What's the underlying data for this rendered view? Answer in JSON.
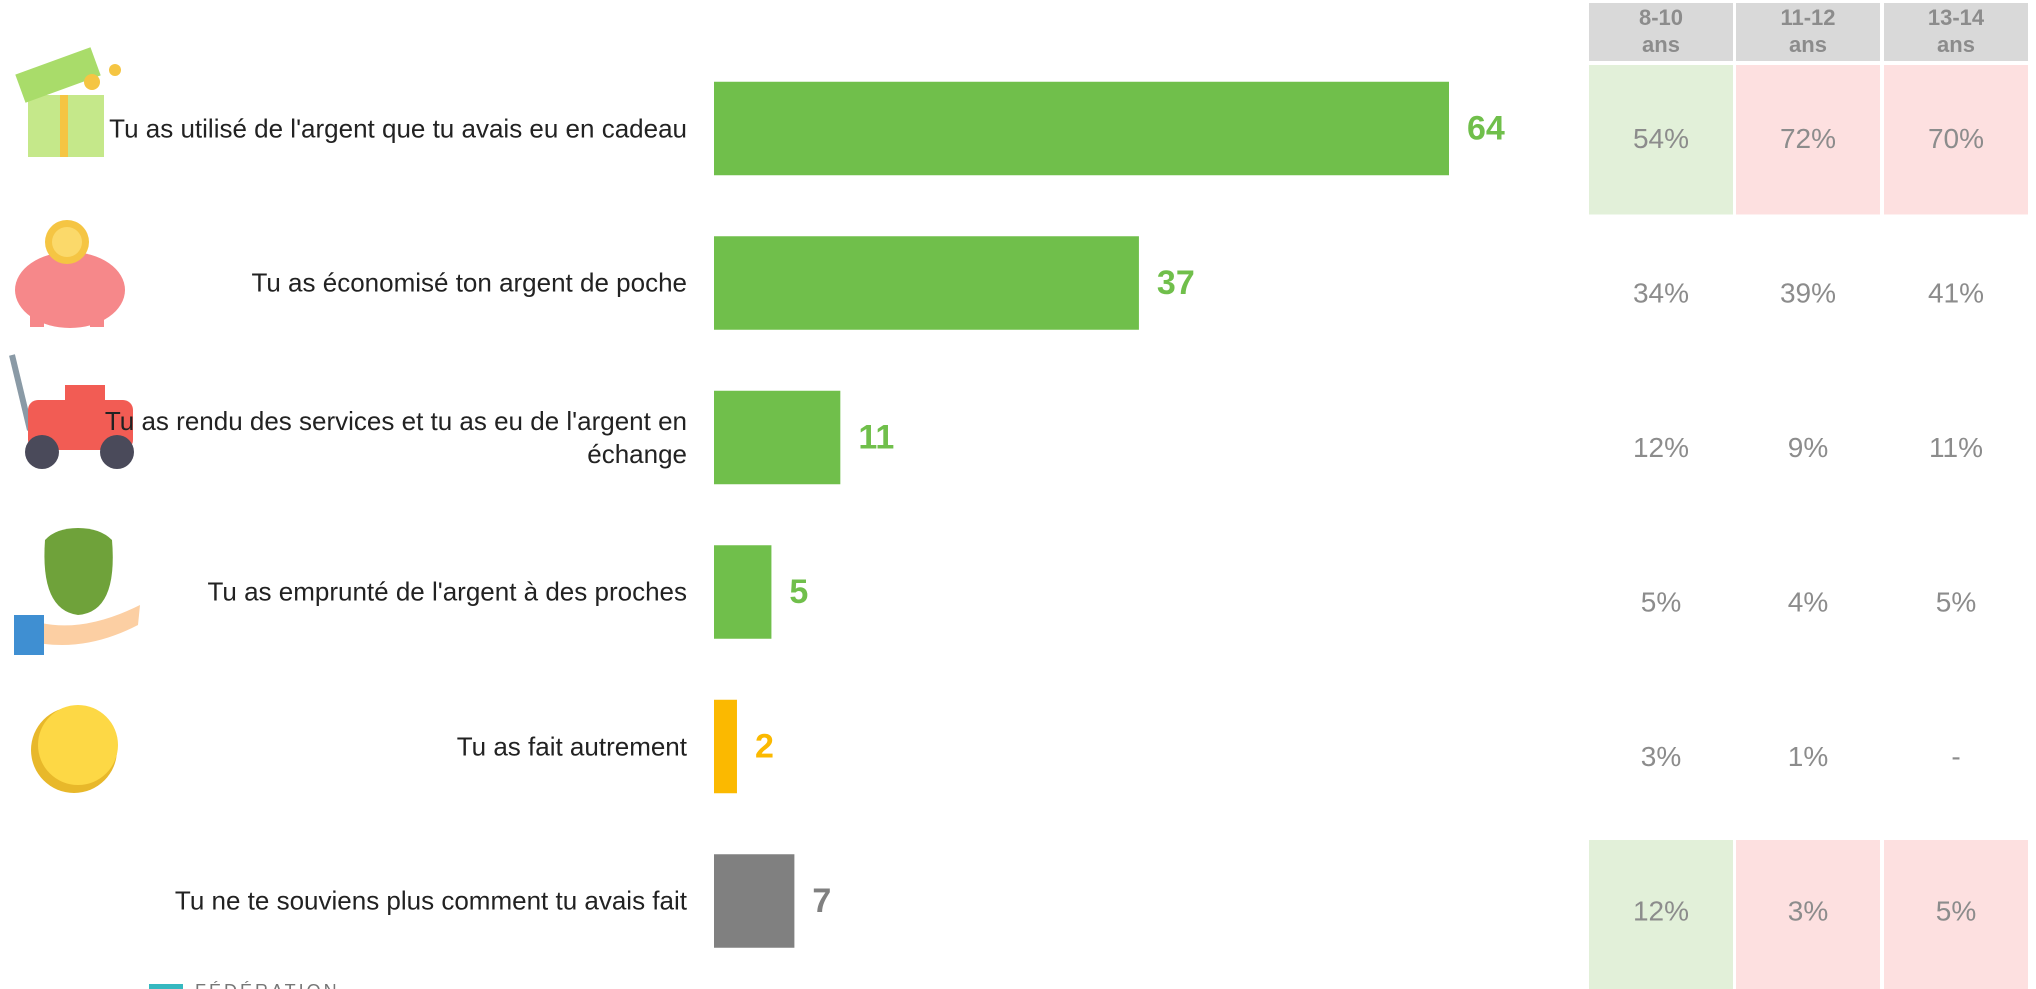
{
  "chart_data": {
    "type": "barh",
    "categories": [
      "Tu as utilisé de l'argent que tu avais eu en cadeau",
      "Tu as économisé ton argent de poche",
      "Tu as rendu des services et tu as eu de l'argent en échange",
      "Tu as emprunté de l'argent à des proches",
      "Tu as fait autrement",
      "Tu ne te souviens plus comment tu avais fait"
    ],
    "values": [
      64,
      37,
      11,
      5,
      2,
      7
    ],
    "colors": [
      "#70bf4b",
      "#70bf4b",
      "#70bf4b",
      "#70bf4b",
      "#fbb900",
      "#808080"
    ]
  },
  "table": {
    "headers": [
      [
        "8-10",
        "ans"
      ],
      [
        "11-12",
        "ans"
      ],
      [
        "13-14",
        "ans"
      ]
    ],
    "rows": [
      [
        "54%",
        "72%",
        "70%"
      ],
      [
        "34%",
        "39%",
        "41%"
      ],
      [
        "12%",
        "9%",
        "11%"
      ],
      [
        "5%",
        "4%",
        "5%"
      ],
      [
        "3%",
        "1%",
        "-"
      ],
      [
        "12%",
        "3%",
        "5%"
      ]
    ],
    "highlight_rows": [
      0,
      5
    ],
    "highlight_colors": [
      "#e2f0d9",
      "#fde0e0",
      "#fde0e0"
    ]
  },
  "footer": {
    "brand": "FÉDÉRATION"
  }
}
